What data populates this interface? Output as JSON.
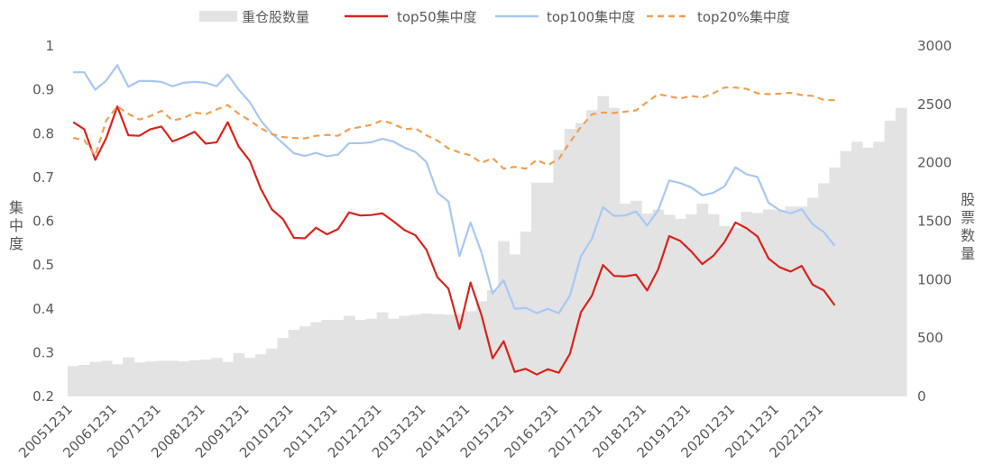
{
  "chart_data": {
    "type": "bar+line",
    "legend_position": "top",
    "grid": false,
    "left_axis": {
      "label": "集中度",
      "range": [
        0.2,
        1.0
      ],
      "ticks": [
        "0.2",
        "0.3",
        "0.4",
        "0.5",
        "0.6",
        "0.7",
        "0.8",
        "0.9",
        "1"
      ]
    },
    "right_axis": {
      "label": "股票数量",
      "range": [
        0,
        3000
      ],
      "ticks": [
        "0",
        "500",
        "1000",
        "1500",
        "2000",
        "2500",
        "3000"
      ]
    },
    "x_tick_labels": [
      "20051231",
      "20061231",
      "20071231",
      "20081231",
      "20091231",
      "20101231",
      "20111231",
      "20121231",
      "20131231",
      "20141231",
      "20151231",
      "20161231",
      "20171231",
      "20181231",
      "20191231",
      "20201231",
      "20211231",
      "20221231"
    ],
    "series": [
      {
        "name": "重仓股数量",
        "kind": "bar",
        "axis": "right",
        "color": "#e3e3e3",
        "values": [
          260,
          270,
          295,
          305,
          275,
          335,
          290,
          300,
          305,
          305,
          300,
          310,
          315,
          330,
          295,
          370,
          330,
          360,
          410,
          500,
          570,
          600,
          635,
          655,
          655,
          690,
          655,
          665,
          720,
          665,
          690,
          700,
          710,
          705,
          700,
          705,
          730,
          815,
          910,
          1330,
          1215,
          1410,
          1830,
          1830,
          2110,
          2290,
          2340,
          2450,
          2570,
          2470,
          1650,
          1675,
          1565,
          1600,
          1555,
          1520,
          1560,
          1650,
          1560,
          1460,
          1440,
          1580,
          1570,
          1600,
          1595,
          1625,
          1625,
          1700,
          1825,
          1960,
          2100,
          2180,
          2130,
          2180,
          2360,
          2470
        ]
      },
      {
        "name": "top50集中度",
        "kind": "line",
        "axis": "left",
        "color": "#d9231c",
        "dash": false,
        "values": [
          0.826,
          0.81,
          0.74,
          0.79,
          0.862,
          0.796,
          0.795,
          0.81,
          0.816,
          0.782,
          0.792,
          0.804,
          0.777,
          0.78,
          0.826,
          0.77,
          0.738,
          0.674,
          0.627,
          0.605,
          0.562,
          0.561,
          0.585,
          0.57,
          0.582,
          0.62,
          0.613,
          0.614,
          0.618,
          0.6,
          0.58,
          0.568,
          0.535,
          0.472,
          0.446,
          0.354,
          0.46,
          0.385,
          0.287,
          0.326,
          0.256,
          0.263,
          0.25,
          0.262,
          0.254,
          0.297,
          0.392,
          0.43,
          0.5,
          0.475,
          0.474,
          0.478,
          0.442,
          0.49,
          0.566,
          0.555,
          0.531,
          0.502,
          0.521,
          0.552,
          0.597,
          0.584,
          0.565,
          0.515,
          0.495,
          0.485,
          0.498,
          0.455,
          0.442,
          0.408
        ]
      },
      {
        "name": "top100集中度",
        "kind": "line",
        "axis": "left",
        "color": "#a6c8f5",
        "dash": false,
        "values": [
          0.94,
          0.94,
          0.9,
          0.921,
          0.956,
          0.907,
          0.92,
          0.92,
          0.918,
          0.908,
          0.916,
          0.918,
          0.916,
          0.908,
          0.935,
          0.9,
          0.872,
          0.83,
          0.8,
          0.778,
          0.755,
          0.749,
          0.756,
          0.748,
          0.752,
          0.778,
          0.778,
          0.78,
          0.788,
          0.782,
          0.768,
          0.758,
          0.735,
          0.665,
          0.645,
          0.52,
          0.597,
          0.528,
          0.435,
          0.465,
          0.4,
          0.402,
          0.39,
          0.4,
          0.39,
          0.43,
          0.52,
          0.56,
          0.632,
          0.612,
          0.613,
          0.622,
          0.59,
          0.625,
          0.693,
          0.687,
          0.677,
          0.659,
          0.665,
          0.679,
          0.723,
          0.707,
          0.701,
          0.642,
          0.625,
          0.618,
          0.627,
          0.593,
          0.575,
          0.544
        ]
      },
      {
        "name": "top20%集中度",
        "kind": "line",
        "axis": "left",
        "color": "#f39e50",
        "dash": true,
        "values": [
          0.79,
          0.785,
          0.75,
          0.83,
          0.862,
          0.845,
          0.832,
          0.84,
          0.852,
          0.83,
          0.835,
          0.848,
          0.844,
          0.855,
          0.865,
          0.845,
          0.83,
          0.812,
          0.799,
          0.792,
          0.79,
          0.789,
          0.795,
          0.797,
          0.795,
          0.81,
          0.815,
          0.82,
          0.83,
          0.822,
          0.81,
          0.812,
          0.796,
          0.784,
          0.766,
          0.757,
          0.75,
          0.733,
          0.744,
          0.72,
          0.724,
          0.72,
          0.74,
          0.728,
          0.742,
          0.78,
          0.815,
          0.844,
          0.848,
          0.847,
          0.85,
          0.853,
          0.872,
          0.89,
          0.885,
          0.88,
          0.886,
          0.882,
          0.892,
          0.905,
          0.905,
          0.902,
          0.892,
          0.89,
          0.891,
          0.893,
          0.888,
          0.886,
          0.877,
          0.876
        ]
      }
    ]
  }
}
